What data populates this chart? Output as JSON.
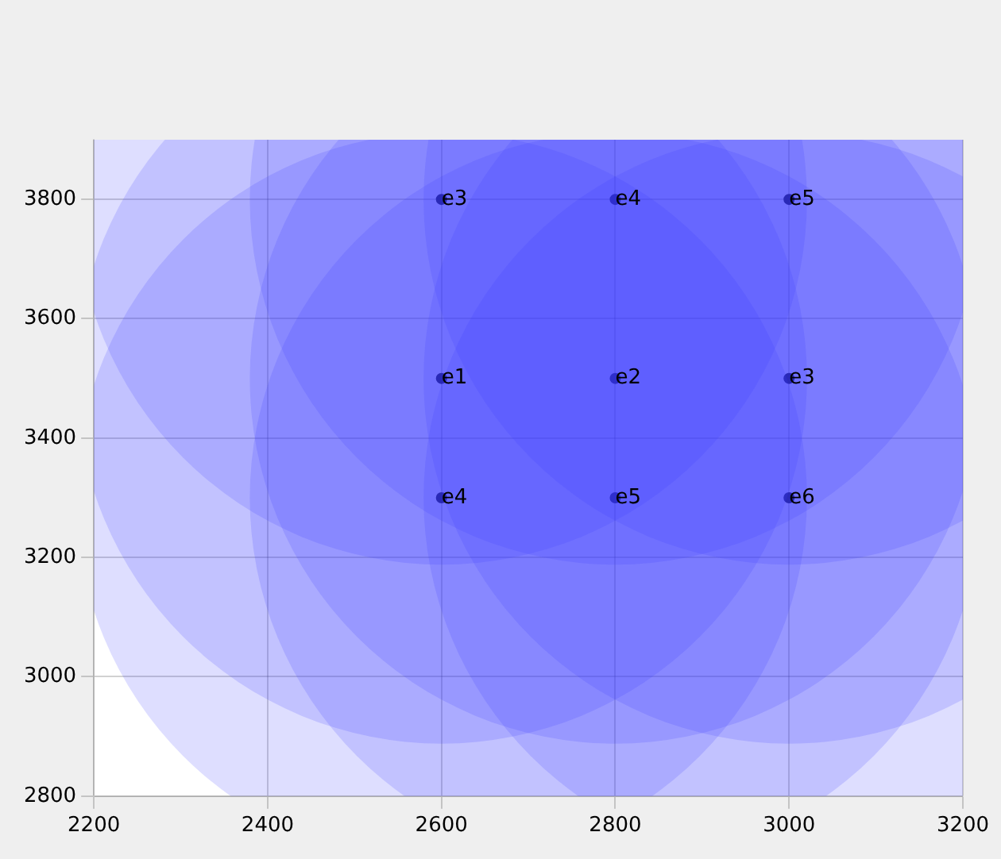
{
  "chart_data": {
    "type": "scatter",
    "xlim": [
      2200,
      3200
    ],
    "xticks": [
      2200,
      2400,
      2600,
      2800,
      3000,
      3200
    ],
    "ylim": [
      2800,
      3900
    ],
    "yticks": [
      2800,
      3000,
      3200,
      3400,
      3600,
      3800
    ],
    "grid": true,
    "legend": false,
    "relative": false,
    "series": [
      {
        "type": "bubble",
        "color": "#3c3cff",
        "x": [
          2600,
          2800,
          3000,
          2600,
          2800,
          3000,
          2600,
          2800,
          3000
        ],
        "values": [
          3800,
          3800,
          3800,
          3500,
          3500,
          3500,
          3300,
          3300,
          3300
        ],
        "sizes": [
          1,
          1,
          1,
          1,
          1,
          1,
          1,
          1,
          1
        ]
      },
      {
        "color": "#000000",
        "marker": "circle",
        "x": [
          2600,
          2800,
          3000,
          2600,
          2800,
          3000,
          2600,
          2800,
          3000
        ],
        "values": [
          3800,
          3800,
          3800,
          3500,
          3500,
          3500,
          3300,
          3300,
          3300
        ]
      }
    ],
    "annotations": [
      {
        "text": "e3",
        "x": 2600,
        "y": 3800
      },
      {
        "text": "e4",
        "x": 2800,
        "y": 3800
      },
      {
        "text": "e5",
        "x": 3000,
        "y": 3800
      },
      {
        "text": "e1",
        "x": 2600,
        "y": 3500
      },
      {
        "text": "e2",
        "x": 2800,
        "y": 3500
      },
      {
        "text": "e3",
        "x": 3000,
        "y": 3500
      },
      {
        "text": "e4",
        "x": 2600,
        "y": 3300
      },
      {
        "text": "e5",
        "x": 2800,
        "y": 3300
      },
      {
        "text": "e6",
        "x": 3000,
        "y": 3300
      }
    ]
  }
}
